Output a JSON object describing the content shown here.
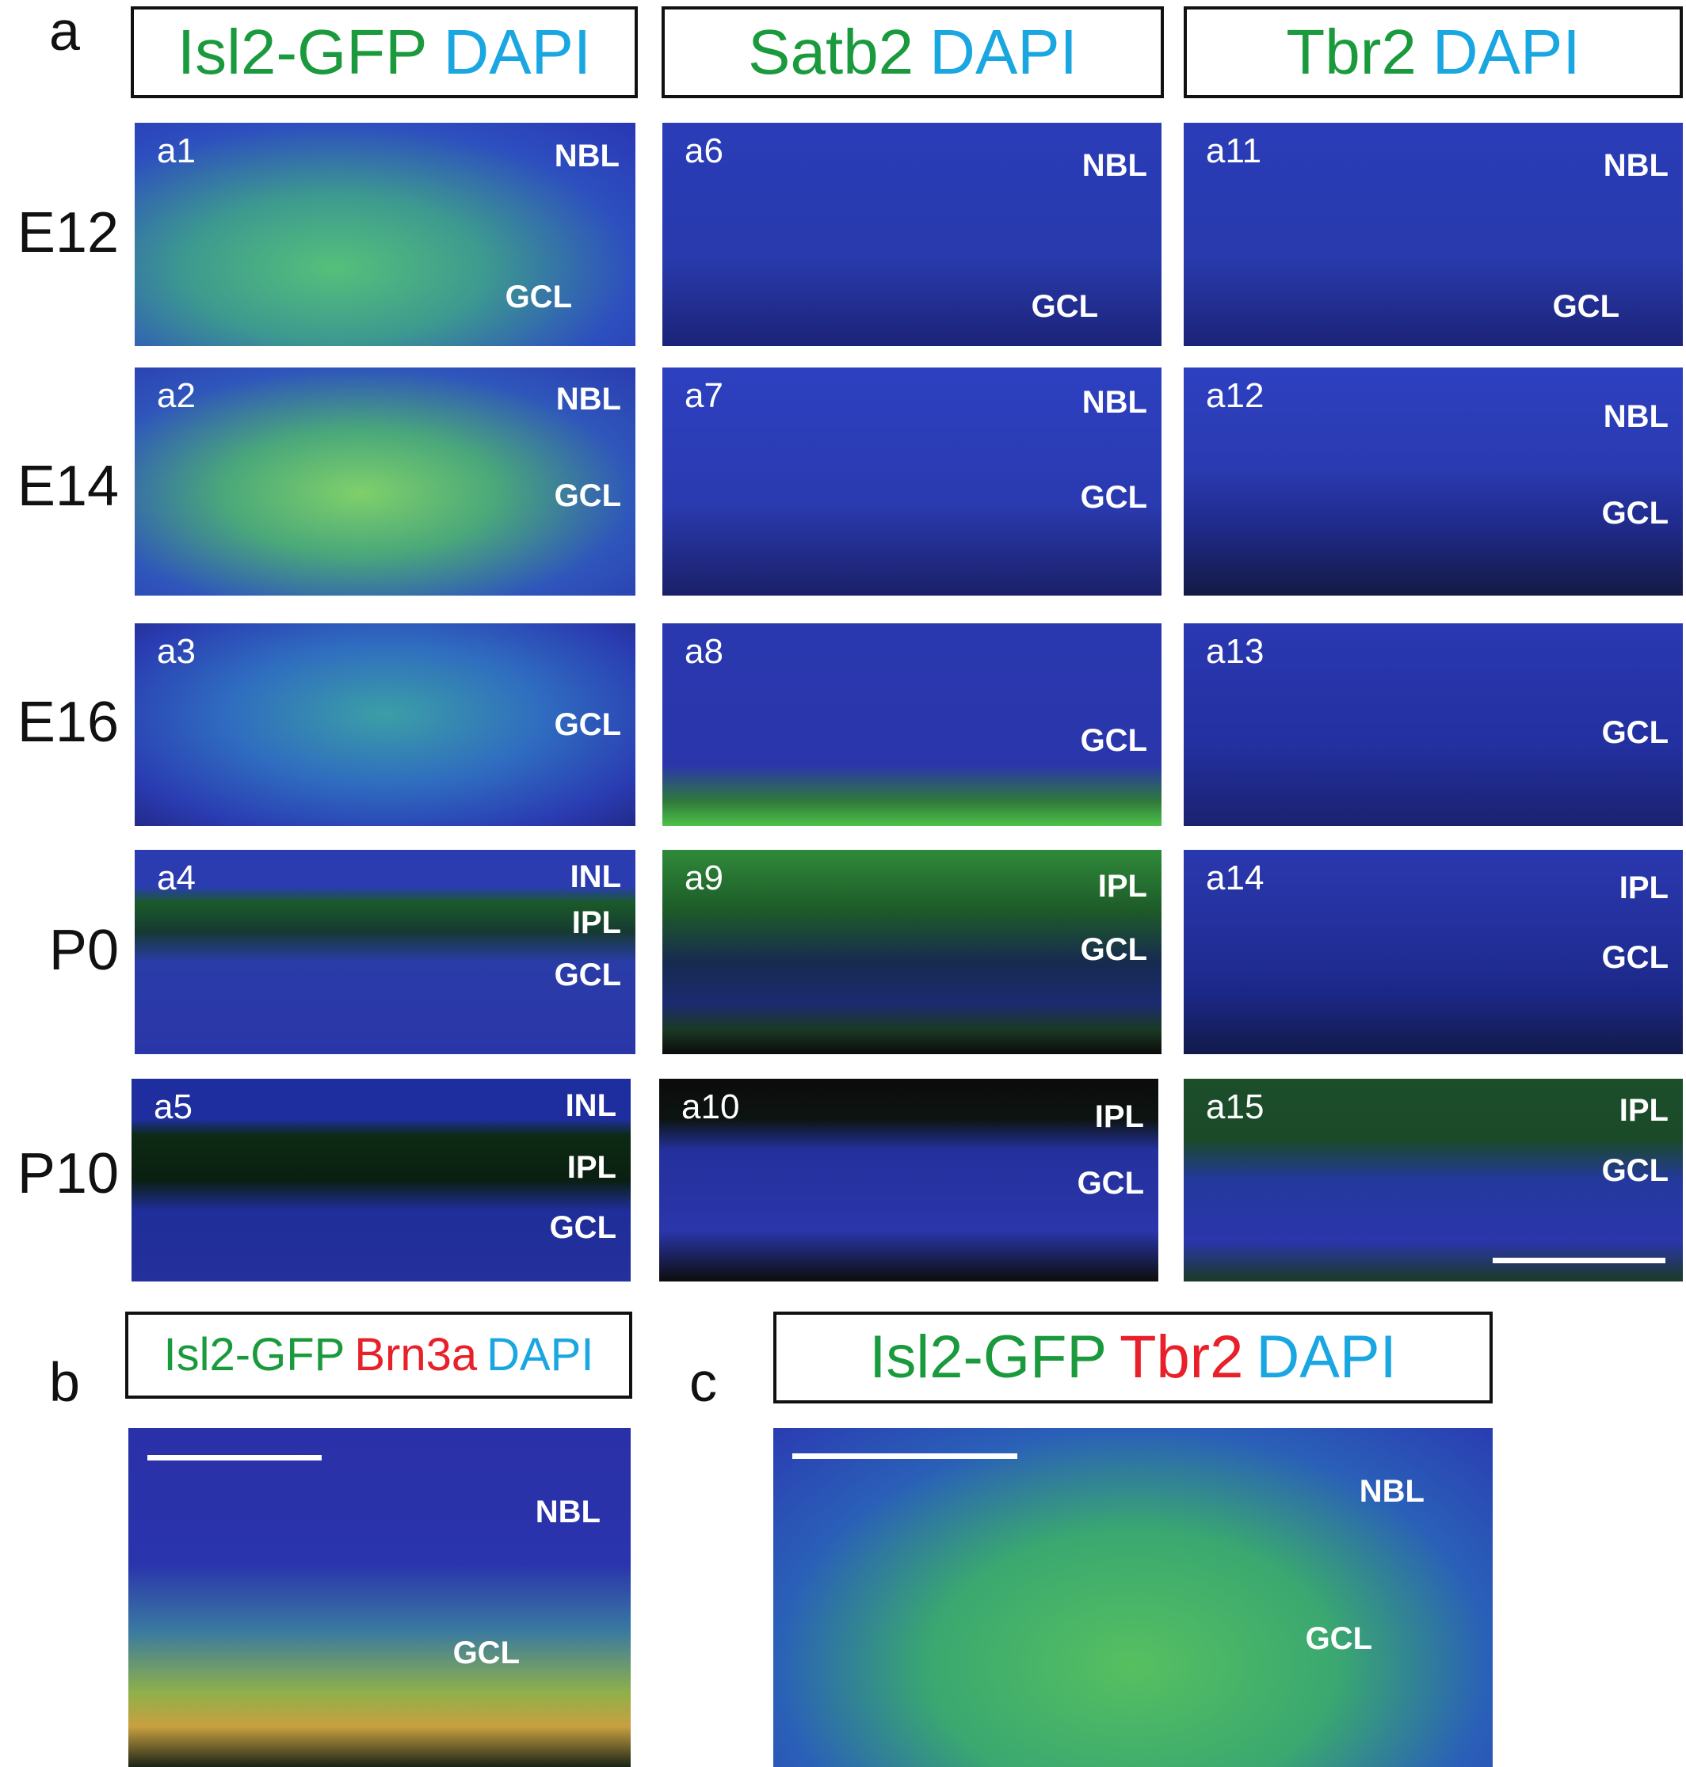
{
  "figure": {
    "panel_a_label": "a",
    "panel_b_label": "b",
    "panel_c_label": "c",
    "colors": {
      "green": "#1a9a3c",
      "cyan": "#1aa6e0",
      "red": "#e8202a",
      "tissue_blue": "#2a2fb0"
    },
    "column_headers": [
      {
        "marker": "Isl2-GFP",
        "stain": "DAPI"
      },
      {
        "marker": "Satb2",
        "stain": "DAPI"
      },
      {
        "marker": "Tbr2",
        "stain": "DAPI"
      }
    ],
    "row_labels": [
      "E12",
      "E14",
      "E16",
      "P0",
      "P10"
    ],
    "panels": [
      {
        "id": "a1",
        "layers": [
          "NBL",
          "GCL"
        ]
      },
      {
        "id": "a2",
        "layers": [
          "NBL",
          "GCL"
        ]
      },
      {
        "id": "a3",
        "layers": [
          "GCL"
        ]
      },
      {
        "id": "a4",
        "layers": [
          "INL",
          "IPL",
          "GCL"
        ]
      },
      {
        "id": "a5",
        "layers": [
          "INL",
          "IPL",
          "GCL"
        ]
      },
      {
        "id": "a6",
        "layers": [
          "NBL",
          "GCL"
        ]
      },
      {
        "id": "a7",
        "layers": [
          "NBL",
          "GCL"
        ]
      },
      {
        "id": "a8",
        "layers": [
          "GCL"
        ]
      },
      {
        "id": "a9",
        "layers": [
          "IPL",
          "GCL"
        ]
      },
      {
        "id": "a10",
        "layers": [
          "IPL",
          "GCL"
        ]
      },
      {
        "id": "a11",
        "layers": [
          "NBL",
          "GCL"
        ]
      },
      {
        "id": "a12",
        "layers": [
          "NBL",
          "GCL"
        ]
      },
      {
        "id": "a13",
        "layers": [
          "GCL"
        ]
      },
      {
        "id": "a14",
        "layers": [
          "IPL",
          "GCL"
        ]
      },
      {
        "id": "a15",
        "layers": [
          "IPL",
          "GCL"
        ]
      }
    ],
    "panel_b": {
      "header": [
        "Isl2-GFP",
        "Brn3a",
        "DAPI"
      ],
      "layers": [
        "NBL",
        "GCL"
      ]
    },
    "panel_c": {
      "header": [
        "Isl2-GFP",
        "Tbr2",
        "DAPI"
      ],
      "layers": [
        "NBL",
        "GCL"
      ]
    }
  }
}
